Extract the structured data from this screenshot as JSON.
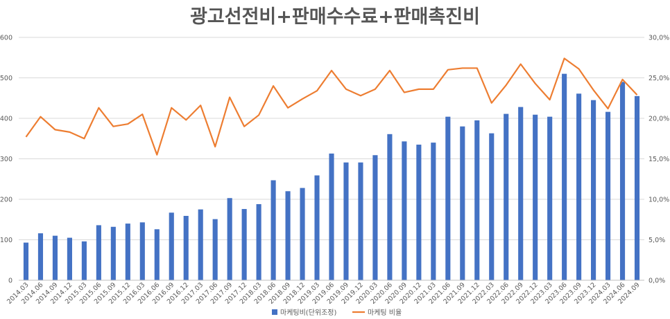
{
  "chart_data": {
    "type": "bar",
    "title": "광고선전비+판매수수료+판매촉진비",
    "categories": [
      "2014.03",
      "2014.06",
      "2014.09",
      "2014.12",
      "2015.03",
      "2015.06",
      "2015.09",
      "2015.12",
      "2016.03",
      "2016.06",
      "2016.09",
      "2016.12",
      "2017.03",
      "2017.06",
      "2017.09",
      "2017.12",
      "2018.03",
      "2018.06",
      "2018.09",
      "2018.12",
      "2019.03",
      "2019.06",
      "2019.09",
      "2019.12",
      "2020.03",
      "2020.06",
      "2020.09",
      "2020.12",
      "2021.03",
      "2021.06",
      "2021.09",
      "2021.12",
      "2022.03",
      "2022.06",
      "2022.09",
      "2022.12",
      "2023.03",
      "2023.06",
      "2023.09",
      "2023.12",
      "2024.03",
      "2024.06",
      "2024.09"
    ],
    "series": [
      {
        "name": "마케팅비(단위조정)",
        "type": "bar",
        "axis": "left",
        "color": "#4472C4",
        "values": [
          93,
          116,
          110,
          105,
          96,
          136,
          132,
          140,
          143,
          126,
          167,
          159,
          175,
          151,
          203,
          176,
          188,
          247,
          220,
          228,
          259,
          313,
          291,
          291,
          309,
          361,
          343,
          335,
          340,
          404,
          380,
          395,
          363,
          411,
          428,
          409,
          404,
          510,
          461,
          445,
          416,
          490,
          455
        ]
      },
      {
        "name": "마케팅 비율",
        "type": "line",
        "axis": "right",
        "color": "#ED7D31",
        "values": [
          17.7,
          20.2,
          18.6,
          18.3,
          17.5,
          21.3,
          19.0,
          19.3,
          20.5,
          15.5,
          21.3,
          19.8,
          21.6,
          16.5,
          22.6,
          19.0,
          20.4,
          24.0,
          21.3,
          22.4,
          23.4,
          25.9,
          23.6,
          22.8,
          23.6,
          25.9,
          23.2,
          23.6,
          23.6,
          26.0,
          26.2,
          26.2,
          21.9,
          24.1,
          26.7,
          24.3,
          22.3,
          27.4,
          26.1,
          23.5,
          21.2,
          24.8,
          22.9
        ]
      }
    ],
    "y_left": {
      "min": 0,
      "max": 600,
      "step": 100,
      "tick_labels": [
        "0",
        "100",
        "200",
        "300",
        "400",
        "500",
        "600"
      ]
    },
    "y_right": {
      "min": 0,
      "max": 30,
      "step": 5,
      "tick_labels": [
        "0,0%",
        "5,0%",
        "10,0%",
        "15,0%",
        "20,0%",
        "25,0%",
        "30,0%"
      ]
    },
    "grid": true,
    "legend_position": "bottom"
  }
}
